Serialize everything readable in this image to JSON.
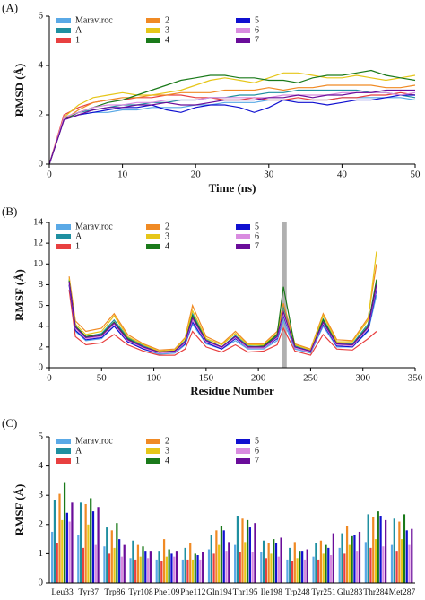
{
  "chart_data": [
    {
      "type": "line",
      "label": "(A)",
      "xlabel": "Time (ns)",
      "ylabel": "RMSD (Å)",
      "xlim": [
        0,
        50
      ],
      "xticks": [
        0,
        10,
        20,
        30,
        40,
        50
      ],
      "ylim": [
        0,
        6
      ],
      "yticks": [
        0,
        2,
        4,
        6
      ],
      "legend": "upper left",
      "x": [
        0,
        2,
        4,
        6,
        8,
        10,
        12,
        14,
        16,
        18,
        20,
        22,
        24,
        26,
        28,
        30,
        32,
        34,
        36,
        38,
        40,
        42,
        44,
        46,
        48,
        50
      ],
      "series": [
        {
          "name": "Maraviroc",
          "color": "#5aa9e6",
          "values": [
            0,
            1.8,
            2.0,
            2.1,
            2.1,
            2.2,
            2.2,
            2.3,
            2.3,
            2.3,
            2.4,
            2.4,
            2.5,
            2.5,
            2.5,
            2.6,
            2.6,
            2.6,
            2.6,
            2.6,
            2.7,
            2.7,
            2.7,
            2.7,
            2.7,
            2.6
          ]
        },
        {
          "name": "A",
          "color": "#1f8fa0",
          "values": [
            0,
            1.9,
            2.1,
            2.2,
            2.3,
            2.4,
            2.4,
            2.5,
            2.5,
            2.6,
            2.6,
            2.7,
            2.7,
            2.8,
            2.8,
            2.9,
            2.9,
            3.0,
            3.0,
            3.0,
            3.0,
            3.0,
            2.9,
            2.9,
            2.8,
            2.7
          ]
        },
        {
          "name": "1",
          "color": "#e84040",
          "values": [
            0,
            2.0,
            2.3,
            2.5,
            2.6,
            2.6,
            2.7,
            2.7,
            2.8,
            2.8,
            2.7,
            2.7,
            2.6,
            2.6,
            2.7,
            2.6,
            2.6,
            2.7,
            2.6,
            2.6,
            2.7,
            2.7,
            2.8,
            2.8,
            2.9,
            2.8
          ]
        },
        {
          "name": "2",
          "color": "#f08a24",
          "values": [
            0,
            1.8,
            2.2,
            2.5,
            2.6,
            2.7,
            2.7,
            2.8,
            2.8,
            2.9,
            2.9,
            2.9,
            3.0,
            3.0,
            3.0,
            3.1,
            3.0,
            3.1,
            3.1,
            3.2,
            3.2,
            3.2,
            3.2,
            3.1,
            3.1,
            3.2
          ]
        },
        {
          "name": "3",
          "color": "#e6c619",
          "values": [
            0,
            1.9,
            2.4,
            2.7,
            2.8,
            2.9,
            2.8,
            2.8,
            2.9,
            3.0,
            3.2,
            3.4,
            3.5,
            3.4,
            3.3,
            3.5,
            3.7,
            3.7,
            3.6,
            3.5,
            3.5,
            3.6,
            3.5,
            3.4,
            3.5,
            3.6
          ]
        },
        {
          "name": "4",
          "color": "#1a7a1a",
          "values": [
            0,
            1.8,
            2.1,
            2.3,
            2.5,
            2.6,
            2.8,
            3.0,
            3.2,
            3.4,
            3.5,
            3.6,
            3.6,
            3.5,
            3.5,
            3.4,
            3.4,
            3.3,
            3.5,
            3.6,
            3.6,
            3.7,
            3.8,
            3.6,
            3.5,
            3.4
          ]
        },
        {
          "name": "5",
          "color": "#1010d0",
          "values": [
            0,
            1.8,
            2.0,
            2.1,
            2.2,
            2.3,
            2.3,
            2.4,
            2.2,
            2.1,
            2.3,
            2.4,
            2.4,
            2.3,
            2.1,
            2.3,
            2.6,
            2.5,
            2.5,
            2.4,
            2.5,
            2.6,
            2.6,
            2.7,
            2.8,
            2.8
          ]
        },
        {
          "name": "6",
          "color": "#d98ce0",
          "values": [
            0,
            1.9,
            2.1,
            2.3,
            2.4,
            2.4,
            2.5,
            2.5,
            2.6,
            2.6,
            2.6,
            2.7,
            2.7,
            2.7,
            2.7,
            2.7,
            2.8,
            2.8,
            2.8,
            2.8,
            2.9,
            2.9,
            2.9,
            2.9,
            2.8,
            2.9
          ]
        },
        {
          "name": "7",
          "color": "#6a0d9a",
          "values": [
            0,
            1.8,
            2.0,
            2.2,
            2.3,
            2.3,
            2.4,
            2.4,
            2.5,
            2.4,
            2.4,
            2.5,
            2.6,
            2.6,
            2.6,
            2.7,
            2.7,
            2.8,
            2.7,
            2.8,
            2.8,
            2.9,
            2.9,
            3.0,
            3.0,
            3.0
          ]
        }
      ]
    },
    {
      "type": "line",
      "label": "(B)",
      "xlabel": "Residue Number",
      "ylabel": "RMSF (Å)",
      "xlim": [
        0,
        350
      ],
      "xticks": [
        0,
        50,
        100,
        150,
        200,
        250,
        300,
        350
      ],
      "ylim": [
        0,
        14
      ],
      "yticks": [
        0,
        2,
        4,
        6,
        8,
        10,
        12,
        14
      ],
      "legend": "upper left",
      "highlight": 225,
      "highlight_color": "#b0b0b0",
      "x": [
        19,
        25,
        35,
        50,
        62,
        75,
        90,
        105,
        120,
        130,
        137,
        150,
        165,
        178,
        190,
        205,
        218,
        224,
        235,
        250,
        262,
        275,
        290,
        305,
        313
      ],
      "series": [
        {
          "name": "Maraviroc",
          "color": "#5aa9e6",
          "values": [
            8.0,
            3.5,
            2.6,
            2.8,
            4.0,
            2.5,
            1.8,
            1.3,
            1.4,
            2.2,
            4.2,
            2.3,
            1.8,
            2.6,
            1.8,
            1.8,
            2.6,
            4.5,
            1.8,
            1.4,
            4.0,
            2.0,
            2.0,
            3.5,
            7.0
          ]
        },
        {
          "name": "A",
          "color": "#1f8fa0",
          "values": [
            8.5,
            4.0,
            3.0,
            3.3,
            4.6,
            2.9,
            2.1,
            1.5,
            1.6,
            2.6,
            5.2,
            2.7,
            2.0,
            3.1,
            2.1,
            2.0,
            3.1,
            5.8,
            2.1,
            1.6,
            4.7,
            2.4,
            2.3,
            4.2,
            8.2
          ]
        },
        {
          "name": "1",
          "color": "#e84040",
          "values": [
            7.5,
            3.0,
            2.2,
            2.4,
            3.2,
            2.2,
            1.6,
            1.2,
            1.2,
            1.8,
            3.5,
            2.0,
            1.5,
            2.2,
            1.5,
            1.6,
            2.2,
            3.8,
            1.6,
            1.2,
            3.2,
            1.8,
            1.7,
            2.8,
            3.5
          ]
        },
        {
          "name": "2",
          "color": "#f08a24",
          "values": [
            8.8,
            4.5,
            3.5,
            3.8,
            5.2,
            3.2,
            2.3,
            1.7,
            1.8,
            2.9,
            6.0,
            3.0,
            2.3,
            3.5,
            2.3,
            2.3,
            3.5,
            6.2,
            2.3,
            1.8,
            5.2,
            2.7,
            2.6,
            4.8,
            10.0
          ]
        },
        {
          "name": "3",
          "color": "#e6c619",
          "values": [
            8.6,
            4.2,
            3.2,
            3.5,
            5.0,
            3.0,
            2.2,
            1.6,
            1.7,
            2.8,
            5.5,
            2.8,
            2.2,
            3.3,
            2.2,
            2.2,
            3.3,
            5.5,
            2.2,
            1.7,
            5.0,
            2.5,
            2.5,
            4.6,
            11.2
          ]
        },
        {
          "name": "4",
          "color": "#1a7a1a",
          "values": [
            8.4,
            4.0,
            3.0,
            3.2,
            4.4,
            2.8,
            2.0,
            1.5,
            1.6,
            2.5,
            5.0,
            2.6,
            2.0,
            3.0,
            2.0,
            2.1,
            3.2,
            7.8,
            2.0,
            1.5,
            4.6,
            2.3,
            2.2,
            4.0,
            8.5
          ]
        },
        {
          "name": "5",
          "color": "#1010d0",
          "values": [
            8.0,
            3.6,
            2.7,
            2.9,
            4.0,
            2.5,
            1.8,
            1.4,
            1.5,
            2.3,
            4.4,
            2.4,
            1.8,
            2.8,
            1.9,
            1.9,
            2.8,
            5.0,
            1.9,
            1.5,
            4.2,
            2.1,
            2.0,
            3.6,
            7.5
          ]
        },
        {
          "name": "6",
          "color": "#d98ce0",
          "values": [
            8.2,
            3.8,
            2.8,
            3.0,
            4.2,
            2.6,
            1.9,
            1.4,
            1.5,
            2.4,
            4.6,
            2.5,
            1.9,
            2.9,
            1.9,
            1.9,
            2.9,
            5.2,
            1.9,
            1.5,
            4.3,
            2.2,
            2.1,
            3.8,
            7.8
          ]
        },
        {
          "name": "7",
          "color": "#6a0d9a",
          "values": [
            8.3,
            3.9,
            2.9,
            3.1,
            4.3,
            2.7,
            2.0,
            1.5,
            1.6,
            2.5,
            4.8,
            2.6,
            2.0,
            3.0,
            2.0,
            2.0,
            3.0,
            5.4,
            2.0,
            1.6,
            4.4,
            2.3,
            2.2,
            3.9,
            8.0
          ]
        }
      ]
    },
    {
      "type": "bar",
      "label": "(C)",
      "ylabel": "RMSF (Å)",
      "ylim": [
        0,
        5
      ],
      "yticks": [
        0,
        1,
        2,
        3,
        4,
        5
      ],
      "legend": "upper left",
      "categories": [
        "Leu33",
        "Tyr37",
        "Trp86",
        "Tyr108",
        "Phe109",
        "Phe112",
        "Gln194",
        "Thr195",
        "Ile198",
        "Trp248",
        "Tyr251",
        "Glu283",
        "Thr284",
        "Met287"
      ],
      "series": [
        {
          "name": "Maraviroc",
          "color": "#5aa9e6",
          "values": [
            1.75,
            1.65,
            1.25,
            0.85,
            0.8,
            0.8,
            1.15,
            1.3,
            1.05,
            0.8,
            0.9,
            1.2,
            1.4,
            1.3
          ]
        },
        {
          "name": "A",
          "color": "#1f8fa0",
          "values": [
            2.85,
            2.75,
            1.9,
            1.45,
            1.1,
            1.2,
            1.65,
            2.3,
            1.45,
            1.2,
            1.35,
            1.7,
            2.35,
            2.2
          ]
        },
        {
          "name": "1",
          "color": "#e84040",
          "values": [
            1.35,
            1.2,
            1.0,
            0.8,
            0.75,
            0.8,
            1.0,
            1.05,
            0.85,
            0.75,
            0.8,
            1.0,
            1.2,
            1.1
          ]
        },
        {
          "name": "2",
          "color": "#f08a24",
          "values": [
            3.05,
            2.7,
            1.8,
            1.3,
            1.5,
            1.35,
            1.8,
            2.2,
            1.35,
            1.4,
            1.45,
            1.95,
            2.25,
            2.1
          ]
        },
        {
          "name": "3",
          "color": "#e6c619",
          "values": [
            2.15,
            2.0,
            1.2,
            0.9,
            0.9,
            0.8,
            1.3,
            1.4,
            1.0,
            0.85,
            1.0,
            1.3,
            1.5,
            1.5
          ]
        },
        {
          "name": "4",
          "color": "#1a7a1a",
          "values": [
            3.45,
            2.9,
            2.05,
            1.25,
            1.15,
            1.0,
            1.95,
            2.15,
            1.5,
            1.1,
            1.3,
            1.6,
            2.45,
            2.35
          ]
        },
        {
          "name": "5",
          "color": "#1010d0",
          "values": [
            2.4,
            2.45,
            1.5,
            1.1,
            1.0,
            0.95,
            1.8,
            1.9,
            1.35,
            1.1,
            1.2,
            1.65,
            2.3,
            1.8
          ]
        },
        {
          "name": "6",
          "color": "#d98ce0",
          "values": [
            2.1,
            1.3,
            0.9,
            0.85,
            0.9,
            0.8,
            1.1,
            1.05,
            0.9,
            0.8,
            0.95,
            1.1,
            1.25,
            1.3
          ]
        },
        {
          "name": "7",
          "color": "#6a0d9a",
          "values": [
            2.75,
            2.6,
            1.3,
            1.1,
            1.1,
            1.05,
            1.4,
            2.05,
            1.55,
            1.15,
            1.7,
            1.75,
            2.15,
            1.85
          ]
        }
      ]
    }
  ]
}
